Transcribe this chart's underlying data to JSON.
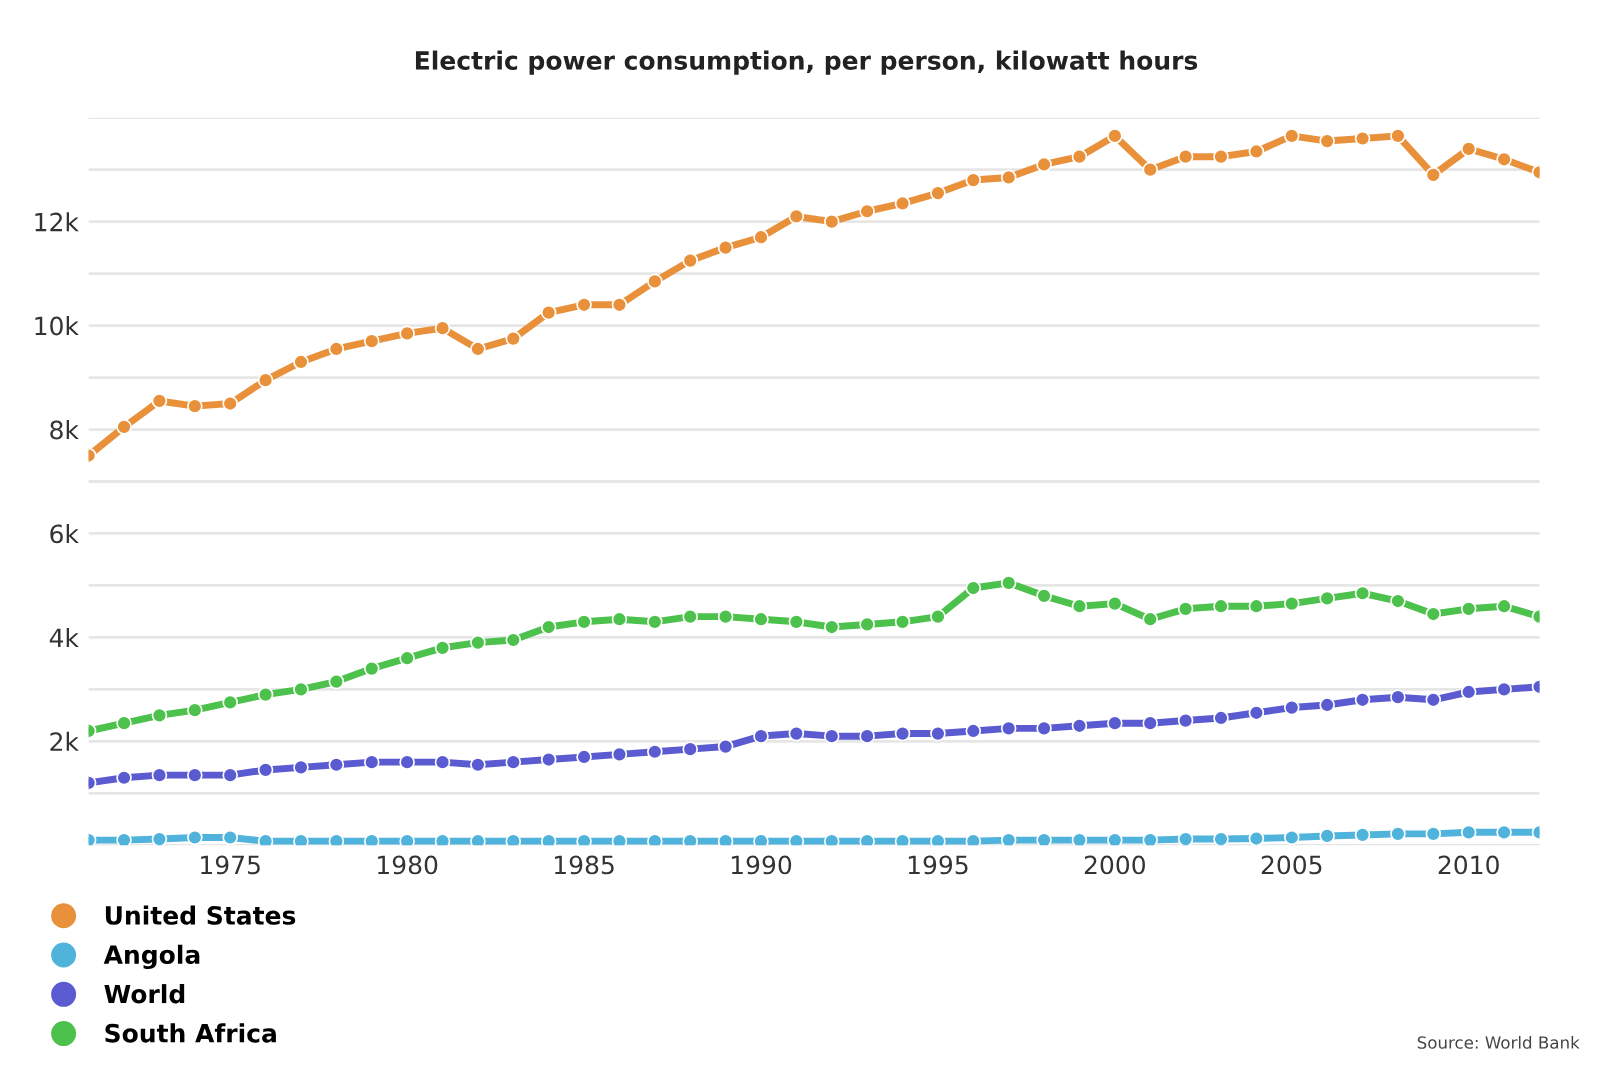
{
  "chart_data": {
    "type": "line",
    "title": "Electric power consumption, per person, kilowatt hours",
    "x": [
      1971,
      1972,
      1973,
      1974,
      1975,
      1976,
      1977,
      1978,
      1979,
      1980,
      1981,
      1982,
      1983,
      1984,
      1985,
      1986,
      1987,
      1988,
      1989,
      1990,
      1991,
      1992,
      1993,
      1994,
      1995,
      1996,
      1997,
      1998,
      1999,
      2000,
      2001,
      2002,
      2003,
      2004,
      2005,
      2006,
      2007,
      2008,
      2009,
      2010,
      2011,
      2012
    ],
    "series": [
      {
        "name": "United States",
        "color": "#e8913a",
        "values": [
          7500,
          8050,
          8550,
          8450,
          8500,
          8950,
          9300,
          9550,
          9700,
          9850,
          9950,
          9550,
          9750,
          10250,
          10400,
          10400,
          10850,
          11250,
          11500,
          11700,
          12100,
          12000,
          12200,
          12350,
          12550,
          12800,
          12850,
          13100,
          13250,
          13650,
          13000,
          13250,
          13250,
          13350,
          13650,
          13550,
          13600,
          13650,
          12900,
          13400,
          13200,
          12950
        ]
      },
      {
        "name": "Angola",
        "color": "#4fb3dc",
        "values": [
          100,
          100,
          120,
          150,
          150,
          80,
          80,
          80,
          80,
          80,
          80,
          80,
          80,
          80,
          80,
          80,
          80,
          80,
          80,
          80,
          80,
          80,
          80,
          80,
          80,
          80,
          100,
          100,
          100,
          100,
          100,
          120,
          120,
          130,
          150,
          180,
          200,
          220,
          220,
          250,
          250,
          250
        ]
      },
      {
        "name": "World",
        "color": "#5b5bd1",
        "values": [
          1200,
          1300,
          1350,
          1350,
          1350,
          1450,
          1500,
          1550,
          1600,
          1600,
          1600,
          1550,
          1600,
          1650,
          1700,
          1750,
          1800,
          1850,
          1900,
          2100,
          2150,
          2100,
          2100,
          2150,
          2150,
          2200,
          2250,
          2250,
          2300,
          2350,
          2350,
          2400,
          2450,
          2550,
          2650,
          2700,
          2800,
          2850,
          2800,
          2950,
          3000,
          3050
        ]
      },
      {
        "name": "South Africa",
        "color": "#4cc14c",
        "values": [
          2200,
          2350,
          2500,
          2600,
          2750,
          2900,
          3000,
          3150,
          3400,
          3600,
          3800,
          3900,
          3950,
          4200,
          4300,
          4350,
          4300,
          4400,
          4400,
          4350,
          4300,
          4200,
          4250,
          4300,
          4400,
          4950,
          5050,
          4800,
          4600,
          4650,
          4350,
          4550,
          4600,
          4600,
          4650,
          4750,
          4850,
          4700,
          4450,
          4550,
          4600,
          4400
        ]
      }
    ],
    "xlim": [
      1971,
      2012
    ],
    "xticks": [
      1975,
      1980,
      1985,
      1990,
      1995,
      2000,
      2005,
      2010
    ],
    "ylim": [
      0,
      14000
    ],
    "yticks": [
      {
        "value": 0,
        "label": null
      },
      {
        "value": 1000,
        "label": null
      },
      {
        "value": 2000,
        "label": "2k"
      },
      {
        "value": 3000,
        "label": null
      },
      {
        "value": 4000,
        "label": "4k"
      },
      {
        "value": 5000,
        "label": null
      },
      {
        "value": 6000,
        "label": "6k"
      },
      {
        "value": 7000,
        "label": null
      },
      {
        "value": 8000,
        "label": "8k"
      },
      {
        "value": 9000,
        "label": null
      },
      {
        "value": 10000,
        "label": "10k"
      },
      {
        "value": 11000,
        "label": null
      },
      {
        "value": 12000,
        "label": "12k"
      },
      {
        "value": 13000,
        "label": null
      },
      {
        "value": 14000,
        "label": null
      }
    ],
    "grid": "y",
    "legend": "bottom left",
    "marker": "circle",
    "line_style": "solid",
    "annotations": [
      "Source: World Bank"
    ]
  }
}
